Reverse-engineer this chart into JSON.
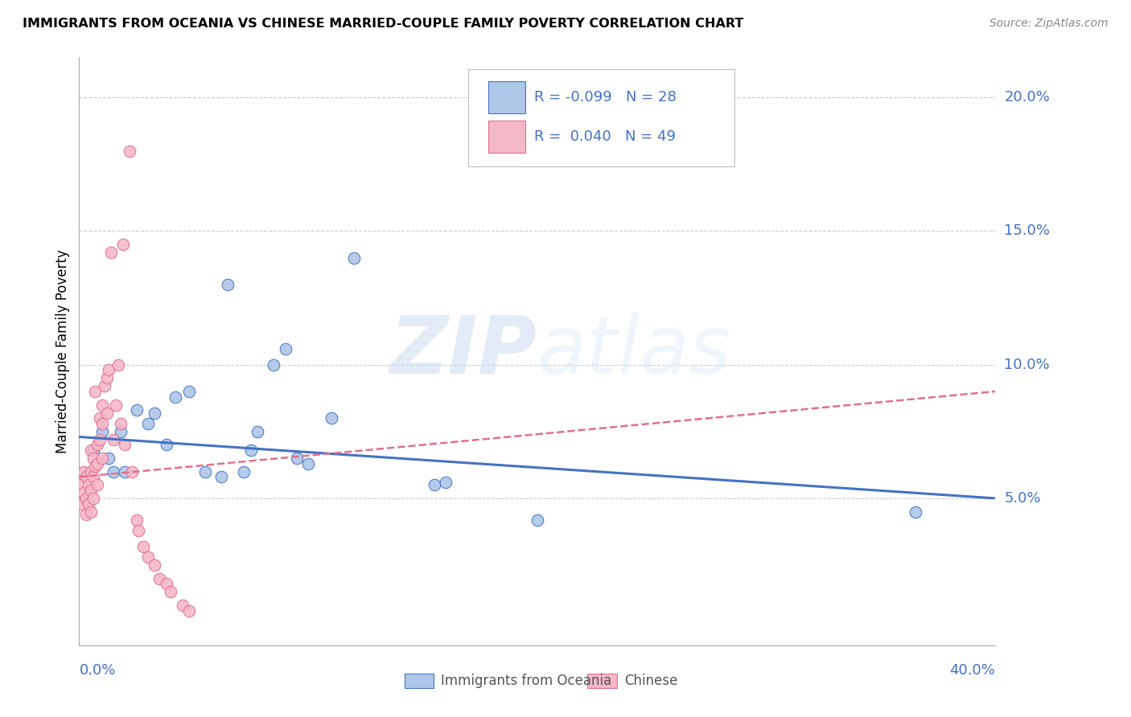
{
  "title": "IMMIGRANTS FROM OCEANIA VS CHINESE MARRIED-COUPLE FAMILY POVERTY CORRELATION CHART",
  "source": "Source: ZipAtlas.com",
  "ylabel": "Married-Couple Family Poverty",
  "right_yticks": [
    "20.0%",
    "15.0%",
    "10.0%",
    "5.0%"
  ],
  "right_ytick_vals": [
    0.2,
    0.15,
    0.1,
    0.05
  ],
  "xlim": [
    0.0,
    0.4
  ],
  "ylim": [
    -0.005,
    0.215
  ],
  "legend_r_oceania": "-0.099",
  "legend_n_oceania": "28",
  "legend_r_chinese": "0.040",
  "legend_n_chinese": "49",
  "oceania_color": "#aec6e8",
  "oceania_edge": "#4472c4",
  "chinese_color": "#f4b8c8",
  "chinese_edge": "#e07090",
  "trendline_oceania_color": "#4472c4",
  "trendline_chinese_color": "#e07090",
  "watermark_zip": "ZIP",
  "watermark_atlas": "atlas",
  "oceania_x": [
    0.006,
    0.01,
    0.013,
    0.015,
    0.018,
    0.02,
    0.025,
    0.03,
    0.033,
    0.038,
    0.042,
    0.048,
    0.055,
    0.062,
    0.065,
    0.072,
    0.075,
    0.078,
    0.085,
    0.09,
    0.095,
    0.1,
    0.11,
    0.12,
    0.155,
    0.16,
    0.2,
    0.365
  ],
  "oceania_y": [
    0.068,
    0.075,
    0.065,
    0.06,
    0.075,
    0.06,
    0.083,
    0.078,
    0.082,
    0.07,
    0.088,
    0.09,
    0.06,
    0.058,
    0.13,
    0.06,
    0.068,
    0.075,
    0.1,
    0.106,
    0.065,
    0.063,
    0.08,
    0.14,
    0.055,
    0.056,
    0.042,
    0.045
  ],
  "chinese_x": [
    0.001,
    0.001,
    0.002,
    0.002,
    0.003,
    0.003,
    0.003,
    0.004,
    0.004,
    0.005,
    0.005,
    0.005,
    0.005,
    0.006,
    0.006,
    0.006,
    0.007,
    0.007,
    0.008,
    0.008,
    0.008,
    0.009,
    0.009,
    0.01,
    0.01,
    0.01,
    0.011,
    0.012,
    0.012,
    0.013,
    0.014,
    0.015,
    0.016,
    0.017,
    0.018,
    0.019,
    0.02,
    0.022,
    0.023,
    0.025,
    0.026,
    0.028,
    0.03,
    0.033,
    0.035,
    0.038,
    0.04,
    0.045,
    0.048
  ],
  "chinese_y": [
    0.055,
    0.048,
    0.06,
    0.052,
    0.058,
    0.05,
    0.044,
    0.055,
    0.048,
    0.068,
    0.06,
    0.053,
    0.045,
    0.065,
    0.058,
    0.05,
    0.062,
    0.09,
    0.07,
    0.063,
    0.055,
    0.08,
    0.072,
    0.085,
    0.078,
    0.065,
    0.092,
    0.095,
    0.082,
    0.098,
    0.142,
    0.072,
    0.085,
    0.1,
    0.078,
    0.145,
    0.07,
    0.18,
    0.06,
    0.042,
    0.038,
    0.032,
    0.028,
    0.025,
    0.02,
    0.018,
    0.015,
    0.01,
    0.008
  ],
  "trendline_oceania_x0": 0.0,
  "trendline_oceania_y0": 0.073,
  "trendline_oceania_x1": 0.4,
  "trendline_oceania_y1": 0.05,
  "trendline_chinese_x0": 0.0,
  "trendline_chinese_x1": 0.4,
  "trendline_chinese_y0": 0.058,
  "trendline_chinese_y1": 0.09
}
